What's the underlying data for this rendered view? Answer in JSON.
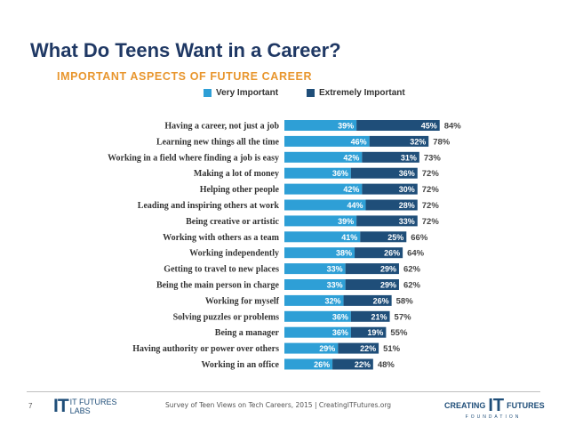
{
  "slide": {
    "title": "What Do Teens Want in a Career?",
    "page_number": "7",
    "source": "Survey of Teen Views on Tech Careers, 2015 | CreatingITFutures.org"
  },
  "logos": {
    "left_mark": "IT",
    "left_line1": "IT FUTURES",
    "left_line2": "LABS",
    "right_creating": "CREATING",
    "right_it": "IT",
    "right_futures": "FUTURES",
    "right_foundation": "FOUNDATION"
  },
  "colors": {
    "very_important": "#2e9fd6",
    "extremely_important": "#1f4e79",
    "title": "#1f3864",
    "subtitle": "#e8962e"
  },
  "chart_data": {
    "type": "bar",
    "stacked": true,
    "orientation": "horizontal",
    "title": "IMPORTANT ASPECTS OF FUTURE CAREER",
    "legend": [
      "Very Important",
      "Extremely Important"
    ],
    "categories": [
      "Having a career, not just a job",
      "Learning new things all the time",
      "Working in a field where finding a job is easy",
      "Making a lot of money",
      "Helping other people",
      "Leading and inspiring others at work",
      "Being creative or artistic",
      "Working with others as a team",
      "Working independently",
      "Getting to travel to new places",
      "Being the main person in charge",
      "Working for myself",
      "Solving puzzles or problems",
      "Being a manager",
      "Having authority or power over others",
      "Working in an office"
    ],
    "series": [
      {
        "name": "Very Important",
        "values": [
          39,
          46,
          42,
          36,
          42,
          44,
          39,
          41,
          38,
          33,
          33,
          32,
          36,
          36,
          29,
          26
        ]
      },
      {
        "name": "Extremely Important",
        "values": [
          45,
          32,
          31,
          36,
          30,
          28,
          33,
          25,
          26,
          29,
          29,
          26,
          21,
          19,
          22,
          22
        ]
      }
    ],
    "totals": [
      84,
      78,
      73,
      72,
      72,
      72,
      72,
      66,
      64,
      62,
      62,
      58,
      57,
      55,
      51,
      48
    ],
    "value_suffix": "%"
  }
}
